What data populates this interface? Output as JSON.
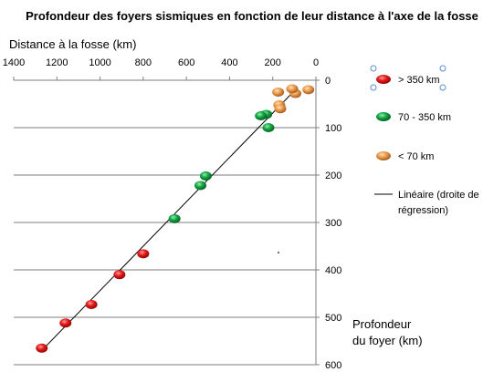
{
  "chart_data": {
    "type": "scatter",
    "title": "Profondeur des  foyers sismiques en fonction de leur distance à l'axe de la fosse",
    "xlabel": "Distance à la fosse (km)",
    "ylabel_line1": "Profondeur",
    "ylabel_line2": "du foyer  (km)",
    "x_axis": {
      "min": 0,
      "max": 1400,
      "reversed": true,
      "ticks": [
        1400,
        1200,
        1000,
        800,
        600,
        400,
        200,
        0
      ],
      "position": "top"
    },
    "y_axis": {
      "min": 0,
      "max": 600,
      "inverted": true,
      "ticks": [
        0,
        100,
        200,
        300,
        400,
        500,
        600
      ],
      "position": "right"
    },
    "grid": {
      "horizontal": true,
      "vertical": false
    },
    "series": [
      {
        "name": "> 350 km",
        "color": "#cc1111",
        "points": [
          [
            1270,
            565
          ],
          [
            1160,
            512
          ],
          [
            1040,
            473
          ],
          [
            910,
            410
          ],
          [
            800,
            366
          ]
        ]
      },
      {
        "name": "70 - 350 km",
        "color": "#0f9a3a",
        "points": [
          [
            655,
            292
          ],
          [
            535,
            222
          ],
          [
            510,
            202
          ],
          [
            220,
            100
          ],
          [
            230,
            72
          ],
          [
            255,
            75
          ]
        ]
      },
      {
        "name": "< 70 km",
        "color": "#e08a3c",
        "points": [
          [
            95,
            28
          ],
          [
            110,
            18
          ],
          [
            35,
            20
          ],
          [
            175,
            25
          ],
          [
            170,
            52
          ],
          [
            165,
            60
          ]
        ]
      }
    ],
    "trendline": {
      "name": "Linéaire (droite de régression)",
      "name_line1": "Linéaire (droite de",
      "name_line2": "régression)",
      "color": "#000000",
      "from": [
        1270,
        570
      ],
      "to": [
        95,
        20
      ]
    },
    "legend_position": "right"
  }
}
